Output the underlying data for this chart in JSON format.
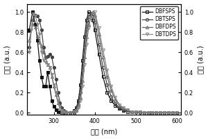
{
  "xlabel": "波长 (nm)",
  "ylabel_left": "吸收 (a.u.)",
  "ylabel_right": "荧光 (a.u.)",
  "xlim": [
    235,
    610
  ],
  "ylim": [
    -0.02,
    1.08
  ],
  "xticks": [
    300,
    400,
    500,
    600
  ],
  "yticks": [
    0.0,
    0.2,
    0.4,
    0.6,
    0.8,
    1.0
  ],
  "legend_labels": [
    "DBFSPS",
    "DBTSPS",
    "DBFDPS",
    "DBTDPS"
  ],
  "bg_color": "#ffffff",
  "marker_size": 3.0,
  "linewidth": 0.9,
  "series": {
    "DBFSPS_abs": {
      "x": [
        240,
        248,
        255,
        260,
        265,
        270,
        275,
        280,
        285,
        290,
        295,
        300,
        305,
        310,
        315,
        320,
        325,
        330,
        340,
        350
      ],
      "y": [
        0.82,
        1.0,
        0.88,
        0.72,
        0.52,
        0.35,
        0.26,
        0.26,
        0.4,
        0.26,
        0.12,
        0.06,
        0.03,
        0.01,
        0.01,
        0.0,
        0.0,
        0.0,
        0.0,
        0.0
      ],
      "color": "#111111",
      "marker": "s",
      "filled": true
    },
    "DBTSPS_abs": {
      "x": [
        240,
        248,
        255,
        260,
        265,
        270,
        275,
        280,
        285,
        290,
        295,
        300,
        305,
        310,
        315,
        320,
        325,
        330,
        340,
        350
      ],
      "y": [
        0.65,
        0.92,
        0.97,
        0.96,
        0.92,
        0.82,
        0.65,
        0.55,
        0.56,
        0.58,
        0.55,
        0.45,
        0.33,
        0.2,
        0.1,
        0.05,
        0.02,
        0.01,
        0.0,
        0.0
      ],
      "color": "#444444",
      "marker": "o",
      "filled": true
    },
    "DBFDPS_abs": {
      "x": [
        240,
        248,
        255,
        260,
        265,
        270,
        275,
        280,
        285,
        290,
        295,
        300,
        305,
        310,
        315,
        320,
        325,
        330,
        340,
        350
      ],
      "y": [
        0.72,
        0.88,
        0.85,
        0.76,
        0.7,
        0.66,
        0.6,
        0.55,
        0.48,
        0.45,
        0.36,
        0.26,
        0.18,
        0.1,
        0.05,
        0.02,
        0.01,
        0.0,
        0.0,
        0.0
      ],
      "color": "#666666",
      "marker": "^",
      "filled": false
    },
    "DBTDPS_abs": {
      "x": [
        240,
        245,
        250,
        255,
        260,
        265,
        270,
        275,
        280,
        285,
        290,
        295,
        300,
        305,
        310,
        315,
        320,
        325,
        330,
        340,
        350
      ],
      "y": [
        0.6,
        0.82,
        0.98,
        0.96,
        0.88,
        0.78,
        0.6,
        0.52,
        0.5,
        0.48,
        0.45,
        0.38,
        0.28,
        0.2,
        0.12,
        0.06,
        0.02,
        0.01,
        0.0,
        0.0,
        0.0
      ],
      "color": "#888888",
      "marker": "v",
      "filled": true
    },
    "DBFSPS_em": {
      "x": [
        320,
        330,
        340,
        350,
        355,
        360,
        365,
        370,
        375,
        380,
        385,
        390,
        395,
        400,
        410,
        420,
        430,
        440,
        450,
        460,
        470,
        480,
        490,
        500,
        510,
        520,
        530,
        540,
        550,
        560,
        570,
        580,
        590,
        600
      ],
      "y": [
        0.0,
        0.0,
        0.0,
        0.02,
        0.05,
        0.12,
        0.28,
        0.52,
        0.75,
        0.92,
        1.0,
        0.98,
        0.92,
        0.82,
        0.58,
        0.36,
        0.2,
        0.12,
        0.07,
        0.04,
        0.02,
        0.01,
        0.01,
        0.01,
        0.01,
        0.0,
        0.0,
        0.0,
        0.0,
        0.0,
        0.0,
        0.0,
        0.0,
        0.0
      ],
      "color": "#111111",
      "marker": "s",
      "filled": false
    },
    "DBTSPS_em": {
      "x": [
        320,
        330,
        340,
        350,
        355,
        360,
        365,
        370,
        375,
        380,
        385,
        390,
        395,
        400,
        410,
        420,
        430,
        440,
        450,
        460,
        470,
        480,
        490,
        500,
        510,
        520,
        530,
        540,
        550,
        560,
        570,
        580,
        590,
        600
      ],
      "y": [
        0.0,
        0.0,
        0.0,
        0.01,
        0.03,
        0.08,
        0.2,
        0.42,
        0.65,
        0.83,
        0.95,
        0.99,
        0.98,
        0.9,
        0.68,
        0.45,
        0.28,
        0.16,
        0.09,
        0.05,
        0.03,
        0.02,
        0.01,
        0.01,
        0.0,
        0.0,
        0.0,
        0.0,
        0.0,
        0.0,
        0.0,
        0.0,
        0.0,
        0.0
      ],
      "color": "#444444",
      "marker": "o",
      "filled": false
    },
    "DBFDPS_em": {
      "x": [
        320,
        330,
        340,
        350,
        355,
        360,
        365,
        370,
        375,
        380,
        385,
        390,
        395,
        400,
        410,
        420,
        430,
        440,
        450,
        460,
        470,
        480,
        490,
        500,
        510,
        520,
        530,
        540,
        550,
        560,
        570,
        580,
        590,
        600
      ],
      "y": [
        0.0,
        0.0,
        0.0,
        0.01,
        0.02,
        0.06,
        0.15,
        0.32,
        0.55,
        0.75,
        0.88,
        0.96,
        1.0,
        0.97,
        0.78,
        0.55,
        0.36,
        0.22,
        0.13,
        0.07,
        0.04,
        0.02,
        0.01,
        0.01,
        0.01,
        0.0,
        0.0,
        0.0,
        0.0,
        0.0,
        0.0,
        0.0,
        0.0,
        0.0
      ],
      "color": "#666666",
      "marker": "^",
      "filled": false
    },
    "DBTDPS_em": {
      "x": [
        320,
        330,
        340,
        350,
        355,
        360,
        365,
        370,
        375,
        380,
        385,
        390,
        395,
        400,
        410,
        420,
        430,
        440,
        450,
        460,
        470,
        480,
        490,
        500,
        510,
        520,
        530,
        540,
        550,
        560,
        570,
        580,
        590,
        600
      ],
      "y": [
        0.0,
        0.0,
        0.0,
        0.01,
        0.02,
        0.05,
        0.12,
        0.26,
        0.48,
        0.68,
        0.84,
        0.94,
        0.99,
        1.0,
        0.84,
        0.62,
        0.42,
        0.26,
        0.15,
        0.08,
        0.05,
        0.03,
        0.01,
        0.01,
        0.01,
        0.0,
        0.0,
        0.0,
        0.0,
        0.0,
        0.0,
        0.0,
        0.0,
        0.0
      ],
      "color": "#888888",
      "marker": "v",
      "filled": false
    }
  }
}
